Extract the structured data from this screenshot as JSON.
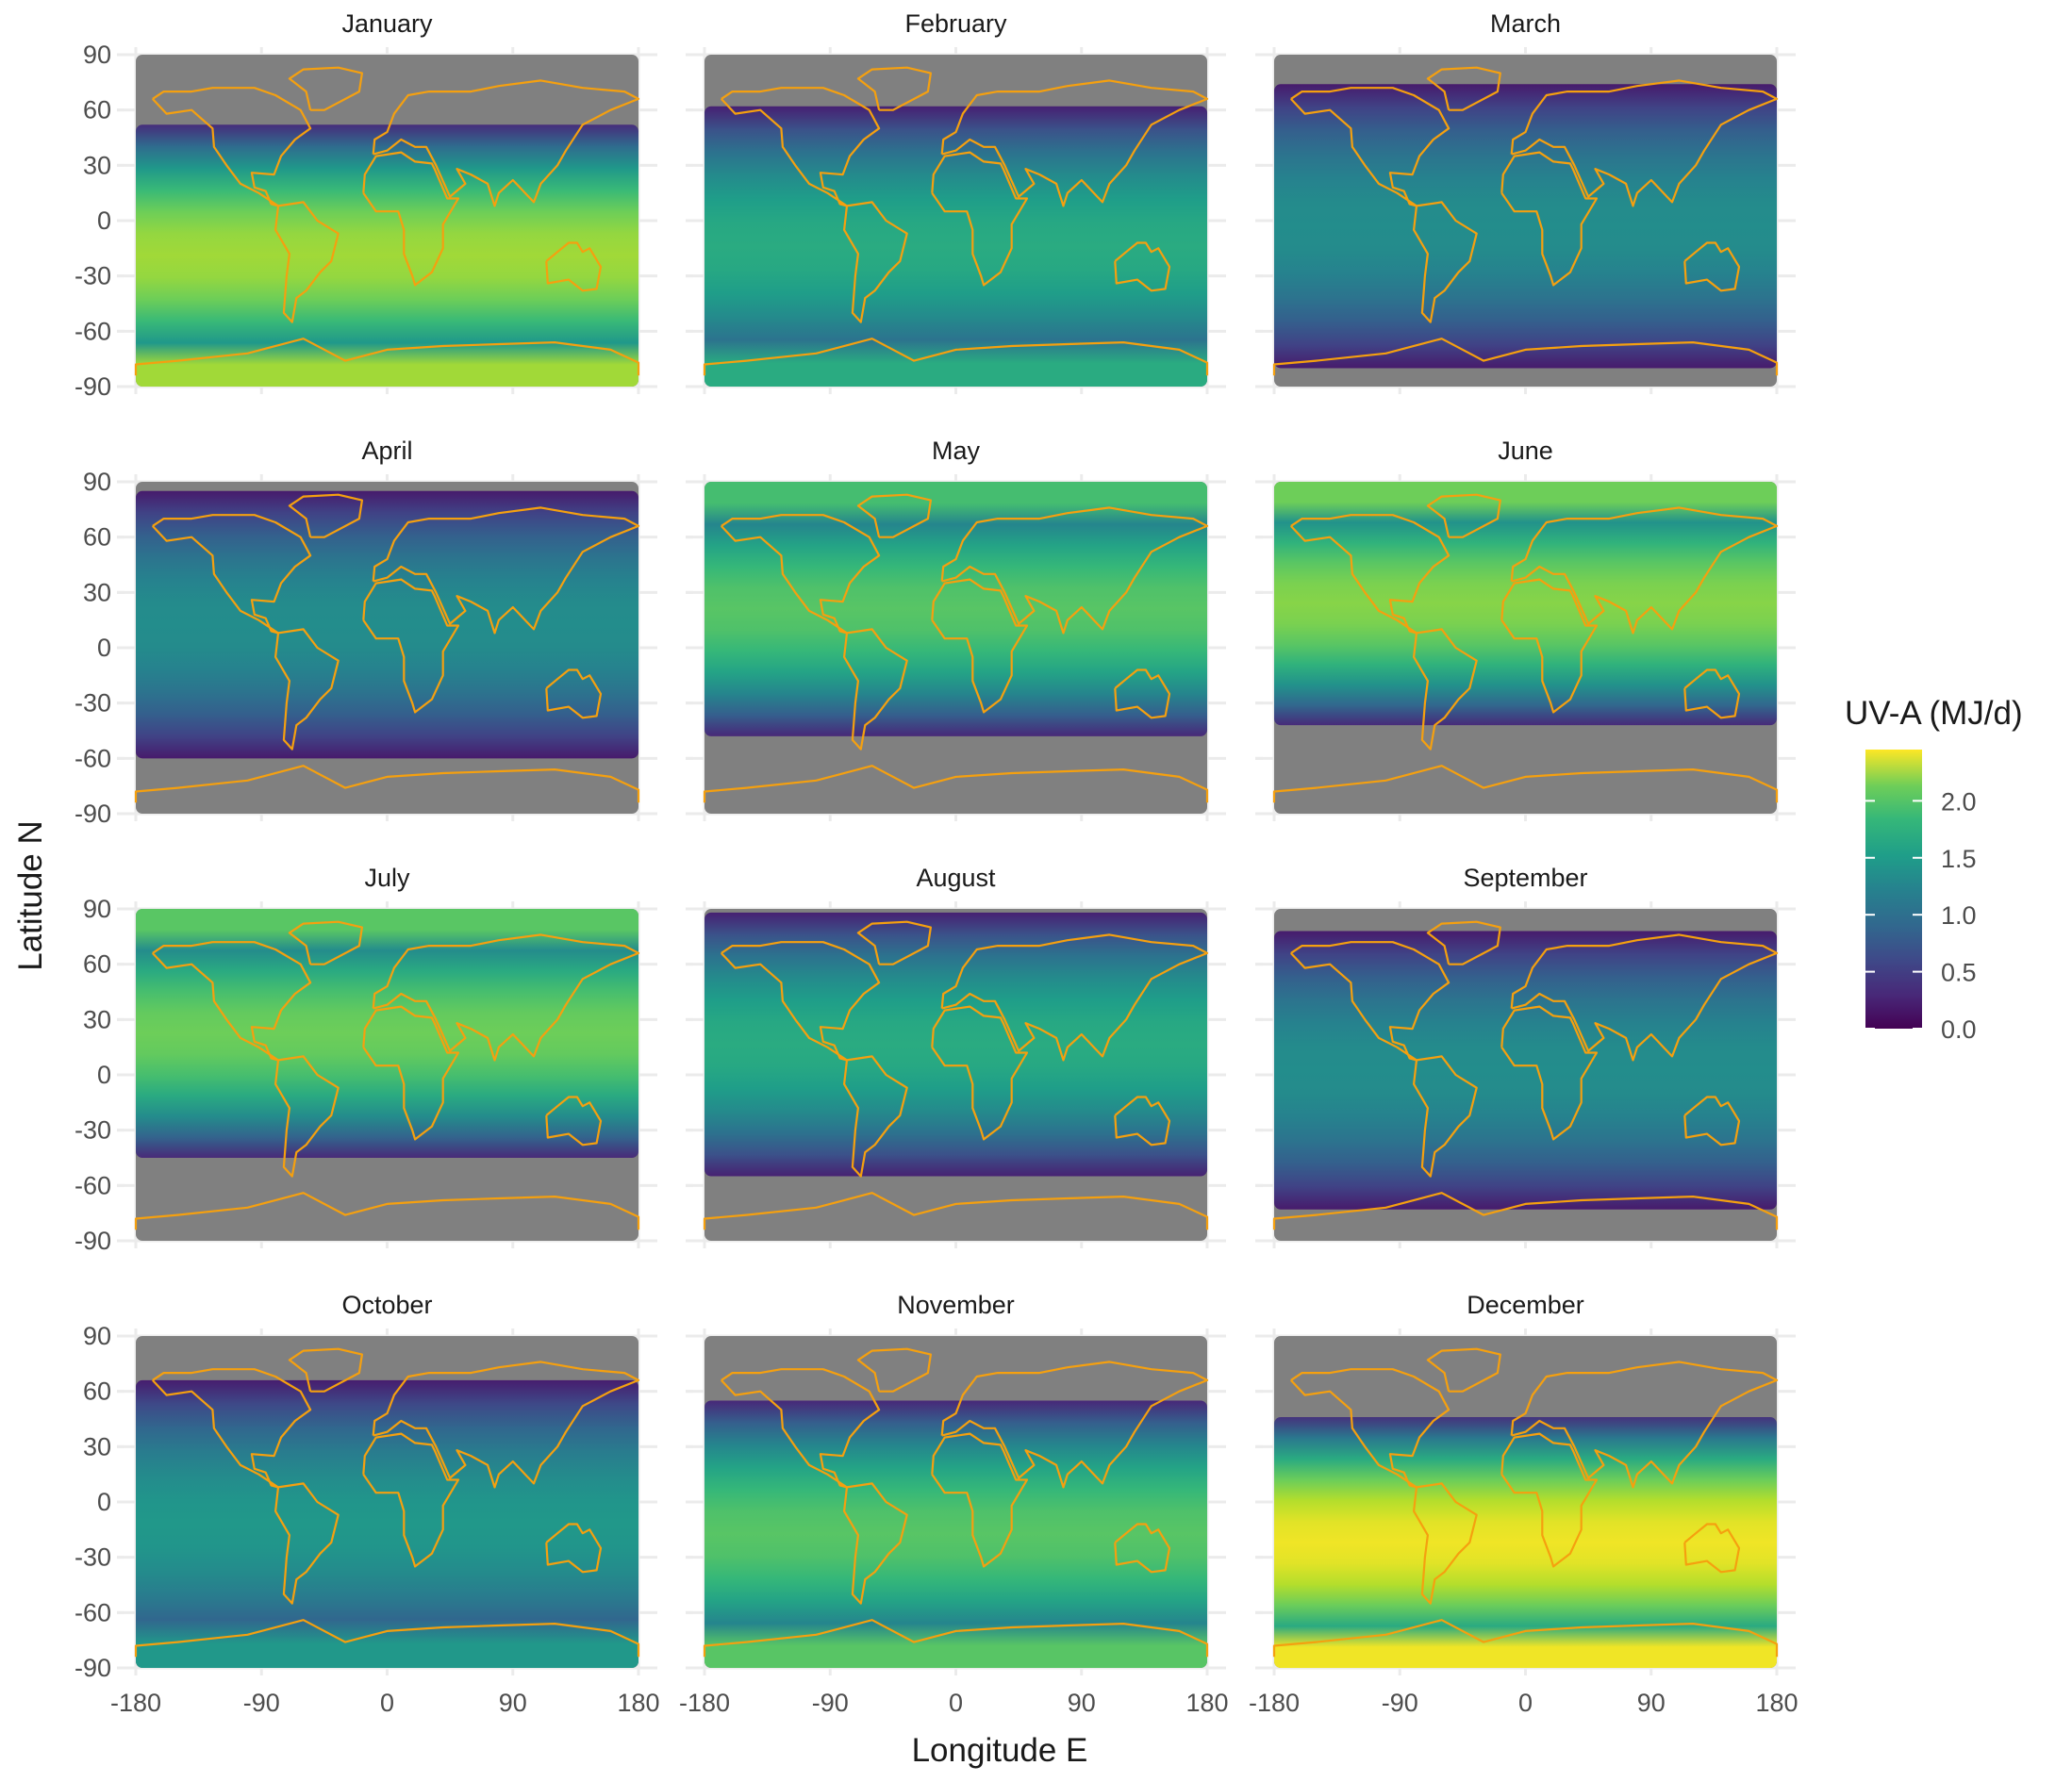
{
  "figure": {
    "xlabel": "Longitude E",
    "ylabel": "Latitude N",
    "legend_title": "UV-A (MJ/d)",
    "outline_color": "#f5a00f",
    "no_data_color": "#808080",
    "colorscale": "viridis"
  },
  "chart_data": {
    "type": "heatmap",
    "facet_by": "month",
    "x_ticks": [
      "-180",
      "-90",
      "0",
      "90",
      "180"
    ],
    "y_ticks": [
      "90",
      "60",
      "30",
      "0",
      "-30",
      "-60",
      "-90"
    ],
    "xlim": [
      -180,
      180
    ],
    "ylim": [
      -90,
      90
    ],
    "color_range": [
      0.0,
      2.45
    ],
    "legend_ticks": [
      "2.0",
      "1.5",
      "1.0",
      "0.5",
      "0.0"
    ],
    "legend_tick_values": [
      2.0,
      1.5,
      1.0,
      0.5,
      0.0
    ],
    "panels": [
      {
        "title": "January",
        "data_lat_range": [
          -90,
          52
        ],
        "approx_peak_value": 2.1
      },
      {
        "title": "February",
        "data_lat_range": [
          -90,
          62
        ],
        "approx_peak_value": 1.5
      },
      {
        "title": "March",
        "data_lat_range": [
          -80,
          74
        ],
        "approx_peak_value": 1.2
      },
      {
        "title": "April",
        "data_lat_range": [
          -60,
          85
        ],
        "approx_peak_value": 1.2
      },
      {
        "title": "May",
        "data_lat_range": [
          -48,
          90
        ],
        "approx_peak_value": 1.8
      },
      {
        "title": "June",
        "data_lat_range": [
          -42,
          90
        ],
        "approx_peak_value": 2.0
      },
      {
        "title": "July",
        "data_lat_range": [
          -45,
          90
        ],
        "approx_peak_value": 1.9
      },
      {
        "title": "August",
        "data_lat_range": [
          -55,
          88
        ],
        "approx_peak_value": 1.5
      },
      {
        "title": "September",
        "data_lat_range": [
          -73,
          78
        ],
        "approx_peak_value": 1.2
      },
      {
        "title": "October",
        "data_lat_range": [
          -90,
          66
        ],
        "approx_peak_value": 1.3
      },
      {
        "title": "November",
        "data_lat_range": [
          -90,
          55
        ],
        "approx_peak_value": 1.8
      },
      {
        "title": "December",
        "data_lat_range": [
          -90,
          46
        ],
        "approx_peak_value": 2.4
      }
    ]
  }
}
